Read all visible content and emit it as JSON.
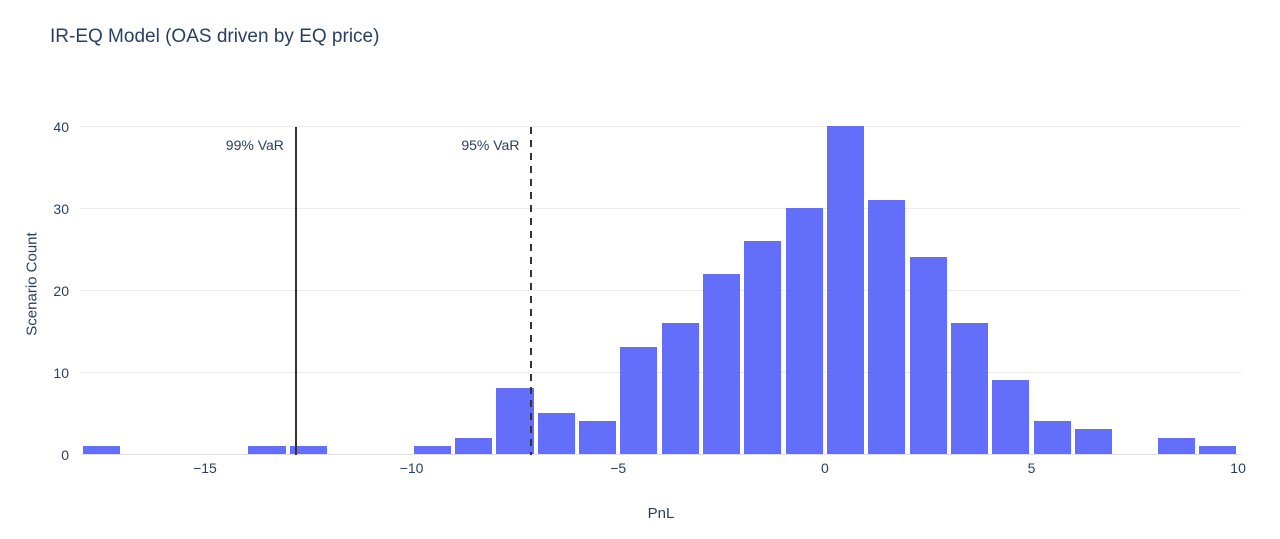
{
  "chart_data": {
    "type": "bar",
    "subtype": "histogram",
    "title": "IR-EQ Model (OAS driven by EQ price)",
    "xlabel": "PnL",
    "ylabel": "Scenario Count",
    "bin_width": 1,
    "bin_centers": [
      -17.5,
      -13.5,
      -12.5,
      -9.5,
      -8.5,
      -7.5,
      -6.5,
      -5.5,
      -4.5,
      -3.5,
      -2.5,
      -1.5,
      -0.5,
      0.5,
      1.5,
      2.5,
      3.5,
      4.5,
      5.5,
      6.5,
      8.5,
      9.5
    ],
    "counts": [
      1,
      1,
      1,
      1,
      2,
      8,
      5,
      4,
      13,
      16,
      22,
      26,
      30,
      40,
      31,
      24,
      16,
      9,
      4,
      3,
      2,
      1
    ],
    "x_tick_values": [
      -15,
      -10,
      -5,
      0,
      5,
      10
    ],
    "x_tick_labels": [
      "−15",
      "−10",
      "−5",
      "0",
      "5",
      "10"
    ],
    "y_tick_values": [
      0,
      10,
      20,
      30,
      40
    ],
    "y_tick_labels": [
      "0",
      "10",
      "20",
      "30",
      "40"
    ],
    "xlim": [
      -18.0,
      10.07
    ],
    "ylim": [
      0,
      41.7
    ],
    "grid": true,
    "legend": false,
    "annotations": [
      {
        "label": "99% VaR",
        "x": -12.8,
        "line_style": "solid"
      },
      {
        "label": "95% VaR",
        "x": -7.1,
        "line_style": "dashed"
      }
    ]
  },
  "colors": {
    "bar": "#636EFA",
    "background": "#ffffff",
    "gridline": "#ebebeb",
    "axis_line": "#e2e2e2",
    "text": "#2a3f5f",
    "annotation_line": "#333333"
  }
}
